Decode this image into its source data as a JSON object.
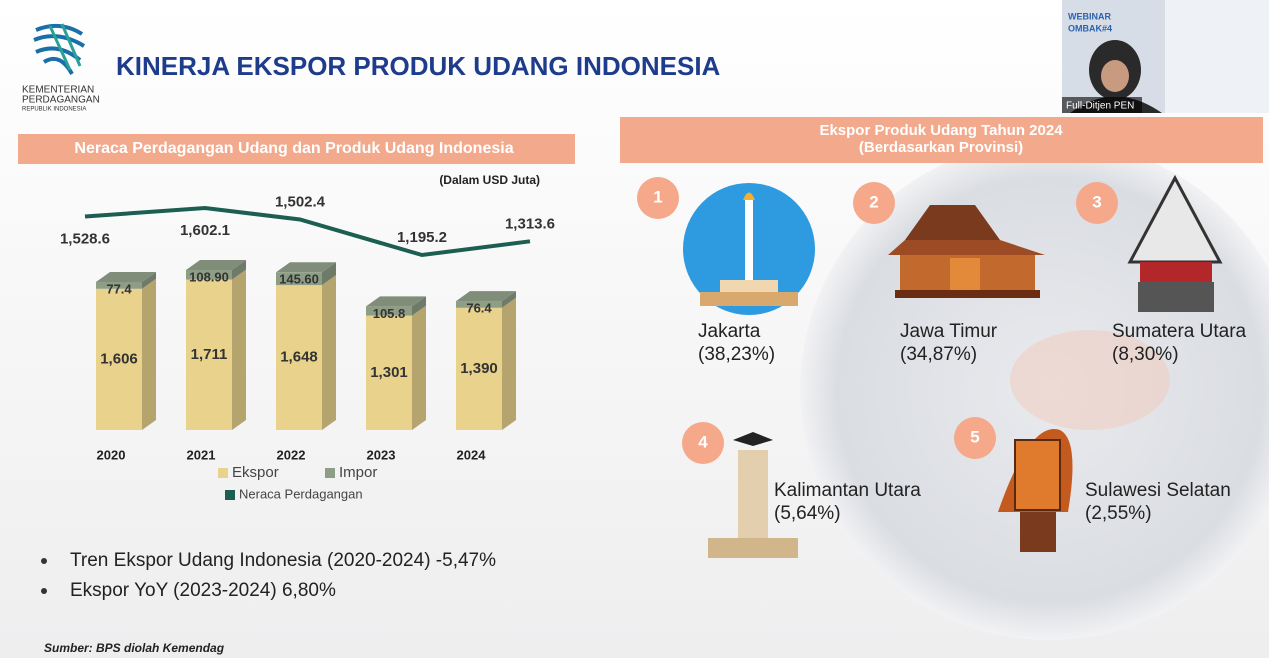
{
  "header": {
    "org": [
      "KEMENTERIAN",
      "PERDAGANGAN",
      "REPUBLIK INDONESIA"
    ],
    "title": "KINERJA EKSPOR PRODUK UDANG INDONESIA"
  },
  "webcam": {
    "event": [
      "WEBINAR",
      "OMBAK#4"
    ],
    "name": "Full-Ditjen PEN"
  },
  "chart_data": {
    "type": "bar",
    "stacked": true,
    "title": "Neraca Perdagangan Udang dan Produk Udang Indonesia",
    "subtitle": "(Dalam USD Juta)",
    "categories": [
      "2020",
      "2021",
      "2022",
      "2023",
      "2024"
    ],
    "series": [
      {
        "name": "Ekspor",
        "color": "#e8d28c",
        "values": [
          1606,
          1711,
          1648,
          1301,
          1390
        ],
        "value_labels": [
          "1,606",
          "1,711",
          "1,648",
          "1,301",
          "1,390"
        ]
      },
      {
        "name": "Impor",
        "color": "#8e9e86",
        "values": [
          77.4,
          108.9,
          145.6,
          105.8,
          76.4
        ],
        "value_labels": [
          "77.4",
          "108.90",
          "145.60",
          "105.8",
          "76.4"
        ]
      },
      {
        "name": "Neraca Perdagangan",
        "type": "line",
        "color": "#1d5e52",
        "values": [
          1528.6,
          1602.1,
          1502.4,
          1195.2,
          1313.6
        ],
        "value_labels": [
          "1,528.6",
          "1,602.1",
          "1,502.4",
          "1,195.2",
          "1,313.6"
        ]
      }
    ]
  },
  "bullets": [
    "Tren Ekspor Udang Indonesia (2020-2024) -5,47%",
    "Ekspor YoY (2023-2024) 6,80%"
  ],
  "source": "Sumber: BPS diolah Kemendag",
  "provinces": {
    "title": [
      "Ekspor Produk Udang Tahun 2024",
      "(Berdasarkan Provinsi)"
    ],
    "items": [
      {
        "rank": "1",
        "name": "Jakarta",
        "share": "(38,23%)"
      },
      {
        "rank": "2",
        "name": "Jawa Timur",
        "share": "(34,87%)"
      },
      {
        "rank": "3",
        "name": "Sumatera Utara",
        "share": "(8,30%)"
      },
      {
        "rank": "4",
        "name": "Kalimantan Utara",
        "share": "(5,64%)"
      },
      {
        "rank": "5",
        "name": "Sulawesi Selatan",
        "share": "(2,55%)"
      }
    ]
  }
}
